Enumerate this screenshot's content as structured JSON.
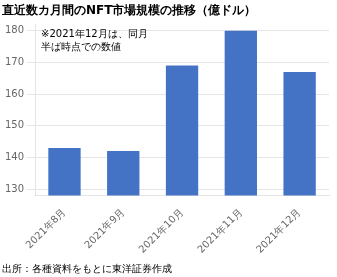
{
  "chart_data": {
    "type": "bar",
    "title": "直近数カ月間のNFT市場規模の推移（億ドル）",
    "categories": [
      "2021年8月",
      "2021年9月",
      "2021年10月",
      "2021年11月",
      "2021年12月"
    ],
    "values": [
      143,
      142,
      169,
      180,
      167
    ],
    "color": "#4472C4",
    "ylim": [
      128,
      182
    ],
    "yticks": [
      130,
      140,
      150,
      160,
      170,
      180
    ],
    "grid": true,
    "annotations": [
      "※2021年12月は、同月",
      "半ば時点での数値"
    ],
    "footer": "出所：各種資料をもとに東洋証券作成"
  }
}
